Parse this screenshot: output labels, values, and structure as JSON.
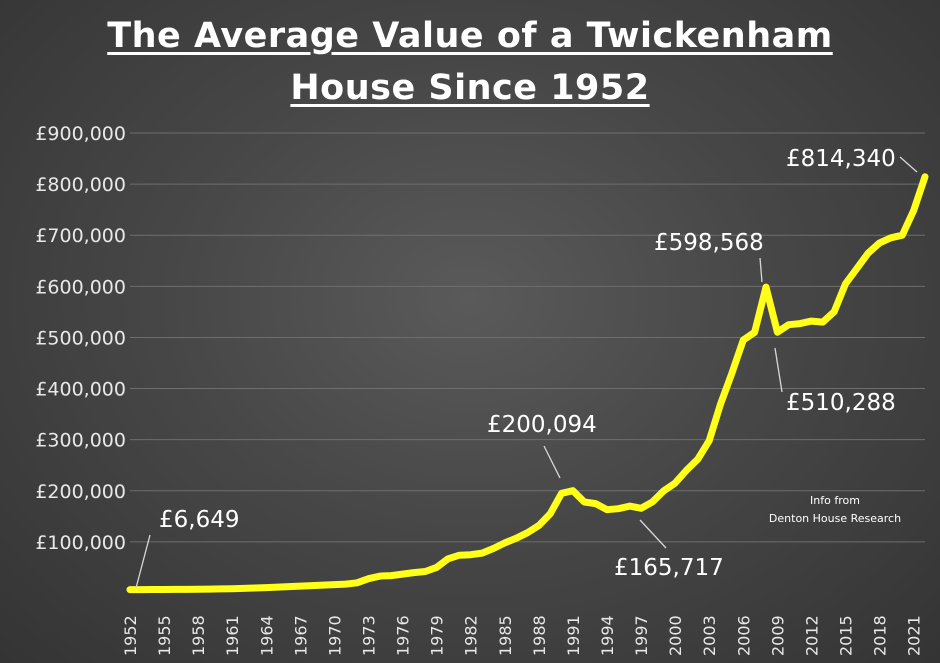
{
  "chart_data": {
    "type": "line",
    "title_line1": "The Average Value of a Twickenham",
    "title_line2": "House Since 1952",
    "series_color": "#ffff1a",
    "grid": true,
    "ylim": [
      0,
      900000
    ],
    "yticks": [
      {
        "value": 100000,
        "label": "£100,000"
      },
      {
        "value": 200000,
        "label": "£200,000"
      },
      {
        "value": 300000,
        "label": "£300,000"
      },
      {
        "value": 400000,
        "label": "£400,000"
      },
      {
        "value": 500000,
        "label": "£500,000"
      },
      {
        "value": 600000,
        "label": "£600,000"
      },
      {
        "value": 700000,
        "label": "£700,000"
      },
      {
        "value": 800000,
        "label": "£800,000"
      },
      {
        "value": 900000,
        "label": "£900,000"
      }
    ],
    "xticks": [
      "1952",
      "1955",
      "1958",
      "1961",
      "1964",
      "1967",
      "1970",
      "1973",
      "1976",
      "1979",
      "1982",
      "1985",
      "1988",
      "1991",
      "1994",
      "1997",
      "2000",
      "2003",
      "2006",
      "2009",
      "2012",
      "2015",
      "2018",
      "2021"
    ],
    "x": [
      1952,
      1953,
      1954,
      1955,
      1956,
      1957,
      1958,
      1959,
      1960,
      1961,
      1962,
      1963,
      1964,
      1965,
      1966,
      1967,
      1968,
      1969,
      1970,
      1971,
      1972,
      1973,
      1974,
      1975,
      1976,
      1977,
      1978,
      1979,
      1980,
      1981,
      1982,
      1983,
      1984,
      1985,
      1986,
      1987,
      1988,
      1989,
      1990,
      1991,
      1992,
      1993,
      1994,
      1995,
      1996,
      1997,
      1998,
      1999,
      2000,
      2001,
      2002,
      2003,
      2004,
      2005,
      2006,
      2007,
      2008,
      2009,
      2010,
      2011,
      2012,
      2013,
      2014,
      2015,
      2016,
      2017,
      2018,
      2019,
      2020,
      2021,
      2022
    ],
    "values": [
      6649,
      6700,
      6800,
      6900,
      7000,
      7100,
      7300,
      7600,
      8000,
      8500,
      9000,
      9800,
      10500,
      11500,
      12500,
      13500,
      14500,
      15500,
      16500,
      17500,
      20000,
      28000,
      33000,
      34000,
      37000,
      40000,
      42000,
      50000,
      67000,
      74000,
      75000,
      78000,
      87000,
      98000,
      107000,
      118000,
      132000,
      155000,
      195000,
      200094,
      178000,
      175000,
      163000,
      165000,
      170000,
      165717,
      178000,
      200000,
      215000,
      240000,
      262000,
      298000,
      370000,
      430000,
      495000,
      510000,
      598568,
      510288,
      525000,
      527000,
      532000,
      530000,
      550000,
      605000,
      635000,
      665000,
      685000,
      695000,
      700000,
      748000,
      814340
    ],
    "annotations": [
      {
        "label": "£6,649",
        "x": 1952,
        "y": 6649
      },
      {
        "label": "£200,094",
        "x": 1991,
        "y": 200094
      },
      {
        "label": "£165,717",
        "x": 1997,
        "y": 165717
      },
      {
        "label": "£598,568",
        "x": 2008,
        "y": 598568
      },
      {
        "label": "£510,288",
        "x": 2009,
        "y": 510288
      },
      {
        "label": "£814,340",
        "x": 2022,
        "y": 814340
      }
    ],
    "note_line1": "Info from",
    "note_line2": "Denton House Research"
  }
}
